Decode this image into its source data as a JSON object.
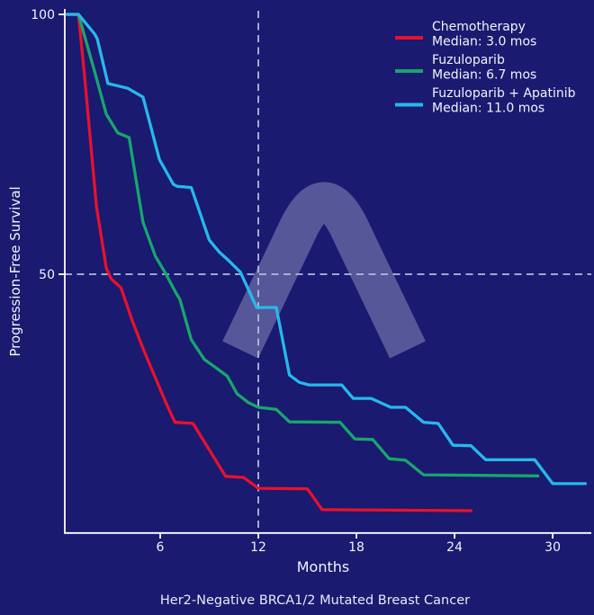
{
  "title": "Her2-Negative BRCA1/2 Mutated Breast Cancer",
  "colors": {
    "background": "#191a70",
    "axis": "#ffffff",
    "text": "#f2f3fa",
    "dashed_reference": "#b6badc",
    "watermark": "rgba(226,229,246,0.30)",
    "chemotherapy": "#e8112d",
    "fuzuloparib": "#18a56e",
    "fuzuloparib_apatinib": "#28b8eb"
  },
  "watermark": {
    "name": "lambda-arch-logo"
  },
  "chart_data": {
    "type": "line",
    "subtype": "kaplan-meier-survival",
    "title": "Her2-Negative BRCA1/2 Mutated Breast Cancer",
    "xlabel": "Months",
    "ylabel": "Progression-Free Survival",
    "xlim": [
      0,
      32.5
    ],
    "ylim": [
      0,
      100
    ],
    "xticks": [
      6,
      12,
      18,
      24,
      30
    ],
    "yticks": [
      50,
      100
    ],
    "grid": false,
    "legend_position": "upper right",
    "reference_lines": {
      "horizontal_y": 50,
      "vertical_x": 12
    },
    "series": [
      {
        "name": "Chemotherapy",
        "median_label": "Median: 3.0 mos",
        "median_months": 3.0,
        "color": "#e8112d",
        "points": [
          [
            0.3,
            100
          ],
          [
            1.0,
            100
          ],
          [
            1.35,
            89
          ],
          [
            2.1,
            63
          ],
          [
            2.7,
            51.2
          ],
          [
            3.0,
            49.1
          ],
          [
            3.6,
            47.4
          ],
          [
            4.3,
            41.0
          ],
          [
            5.0,
            35.3
          ],
          [
            5.7,
            30.1
          ],
          [
            6.4,
            24.9
          ],
          [
            6.9,
            21.5
          ],
          [
            8.0,
            21.3
          ],
          [
            10.0,
            11.1
          ],
          [
            11.1,
            10.9
          ],
          [
            12.0,
            8.8
          ],
          [
            15.0,
            8.7
          ],
          [
            15.9,
            4.7
          ],
          [
            25.0,
            4.5
          ]
        ]
      },
      {
        "name": "Fuzuloparib",
        "median_label": "Median: 6.7 mos",
        "median_months": 6.7,
        "color": "#18a56e",
        "points": [
          [
            0.3,
            100
          ],
          [
            1.0,
            100
          ],
          [
            2.0,
            88.9
          ],
          [
            2.7,
            80.8
          ],
          [
            3.4,
            77.2
          ],
          [
            4.1,
            76.3
          ],
          [
            4.95,
            60.0
          ],
          [
            5.7,
            53.5
          ],
          [
            6.3,
            50.3
          ],
          [
            7.0,
            46.2
          ],
          [
            7.2,
            45.2
          ],
          [
            7.9,
            37.4
          ],
          [
            8.7,
            33.6
          ],
          [
            9.5,
            31.8
          ],
          [
            10.1,
            30.4
          ],
          [
            10.7,
            27.0
          ],
          [
            11.4,
            25.3
          ],
          [
            12.0,
            24.4
          ],
          [
            13.1,
            24.0
          ],
          [
            13.9,
            21.6
          ],
          [
            17.0,
            21.5
          ],
          [
            17.9,
            18.3
          ],
          [
            19.0,
            18.2
          ],
          [
            20.0,
            14.5
          ],
          [
            21.0,
            14.2
          ],
          [
            22.1,
            11.4
          ],
          [
            29.1,
            11.2
          ]
        ]
      },
      {
        "name": "Fuzuloparib + Apatinib",
        "median_label": "Median: 11.0 mos",
        "median_months": 11.0,
        "color": "#28b8eb",
        "points": [
          [
            0.3,
            100
          ],
          [
            1.0,
            100
          ],
          [
            2.0,
            96.2
          ],
          [
            2.15,
            95.3
          ],
          [
            2.8,
            86.7
          ],
          [
            4.0,
            85.8
          ],
          [
            4.95,
            84.1
          ],
          [
            5.95,
            72.1
          ],
          [
            6.8,
            67.3
          ],
          [
            7.05,
            66.9
          ],
          [
            7.9,
            66.7
          ],
          [
            9.0,
            56.6
          ],
          [
            9.6,
            54.3
          ],
          [
            10.2,
            52.6
          ],
          [
            10.9,
            50.4
          ],
          [
            11.9,
            43.6
          ],
          [
            13.1,
            43.6
          ],
          [
            13.9,
            30.6
          ],
          [
            14.5,
            29.2
          ],
          [
            15.1,
            28.7
          ],
          [
            17.1,
            28.7
          ],
          [
            17.8,
            26.1
          ],
          [
            18.9,
            26.1
          ],
          [
            20.1,
            24.4
          ],
          [
            21.0,
            24.4
          ],
          [
            22.1,
            21.5
          ],
          [
            23.0,
            21.3
          ],
          [
            23.9,
            17.1
          ],
          [
            25.0,
            17.0
          ],
          [
            25.9,
            14.3
          ],
          [
            28.9,
            14.3
          ],
          [
            30.0,
            9.7
          ],
          [
            32.0,
            9.7
          ]
        ]
      }
    ]
  },
  "legend": {
    "entries": [
      {
        "label": "Chemotherapy",
        "median": "Median: 3.0 mos"
      },
      {
        "label": "Fuzuloparib",
        "median": "Median: 6.7 mos"
      },
      {
        "label": "Fuzuloparib + Apatinib",
        "median": "Median: 11.0 mos"
      }
    ]
  }
}
